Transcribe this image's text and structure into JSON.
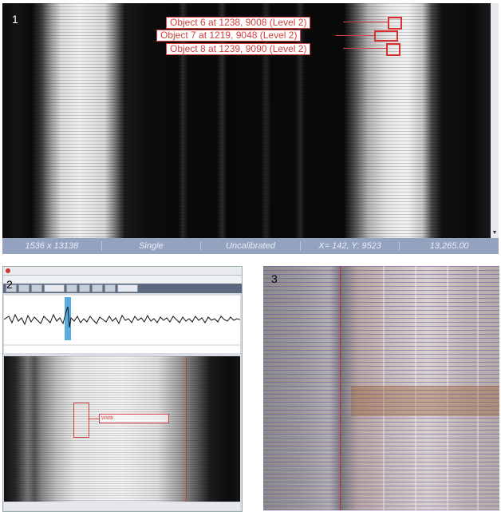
{
  "panels": {
    "p1": {
      "number": "1",
      "annotations": [
        {
          "text": "Object 6 at 1238, 9008 (Level 2)"
        },
        {
          "text": "Object 7 at 1219, 9048 (Level 2)"
        },
        {
          "text": "Object 8 at 1239, 9090 (Level 2)"
        }
      ],
      "status": {
        "dimensions": "1536 x 13138",
        "mode": "Single",
        "calibration": "Uncalibrated",
        "coords": "X= 142, Y: 9523",
        "value": "13,265.00"
      }
    },
    "p2": {
      "number": "2",
      "plot_label": "Width"
    },
    "p3": {
      "number": "3"
    }
  },
  "colors": {
    "annotation_red": "#d04040",
    "status_bar": "#93a3bf",
    "trace_blue": "#3aa0d8"
  }
}
